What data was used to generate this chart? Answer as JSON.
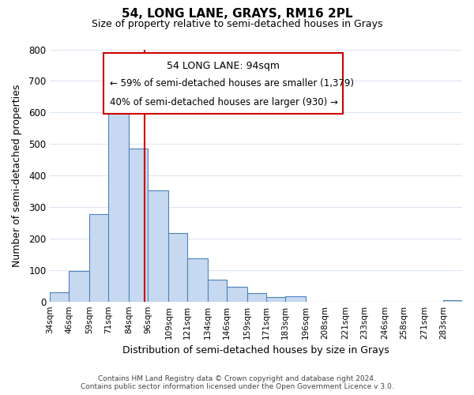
{
  "title": "54, LONG LANE, GRAYS, RM16 2PL",
  "subtitle": "Size of property relative to semi-detached houses in Grays",
  "xlabel": "Distribution of semi-detached houses by size in Grays",
  "ylabel": "Number of semi-detached properties",
  "footer_line1": "Contains HM Land Registry data © Crown copyright and database right 2024.",
  "footer_line2": "Contains public sector information licensed under the Open Government Licence v 3.0.",
  "bin_labels": [
    "34sqm",
    "46sqm",
    "59sqm",
    "71sqm",
    "84sqm",
    "96sqm",
    "109sqm",
    "121sqm",
    "134sqm",
    "146sqm",
    "159sqm",
    "171sqm",
    "183sqm",
    "196sqm",
    "208sqm",
    "221sqm",
    "233sqm",
    "246sqm",
    "258sqm",
    "271sqm",
    "283sqm"
  ],
  "bin_edges": [
    34,
    46,
    59,
    71,
    84,
    96,
    109,
    121,
    134,
    146,
    159,
    171,
    183,
    196,
    208,
    221,
    233,
    246,
    258,
    271,
    283,
    295
  ],
  "bar_heights": [
    30,
    97,
    278,
    600,
    485,
    352,
    218,
    137,
    70,
    46,
    28,
    15,
    17,
    0,
    0,
    0,
    0,
    0,
    0,
    0,
    5
  ],
  "bar_color": "#c6d9f0",
  "bar_edge_color": "#4f81bd",
  "property_size": 94,
  "property_line_color": "#cc0000",
  "annotation_title": "54 LONG LANE: 94sqm",
  "annotation_line1": "← 59% of semi-detached houses are smaller (1,379)",
  "annotation_line2": "40% of semi-detached houses are larger (930) →",
  "annotation_box_edge_color": "#cc0000",
  "ylim": [
    0,
    800
  ],
  "yticks": [
    0,
    100,
    200,
    300,
    400,
    500,
    600,
    700,
    800
  ],
  "background_color": "#ffffff",
  "grid_color": "#dce6f1"
}
